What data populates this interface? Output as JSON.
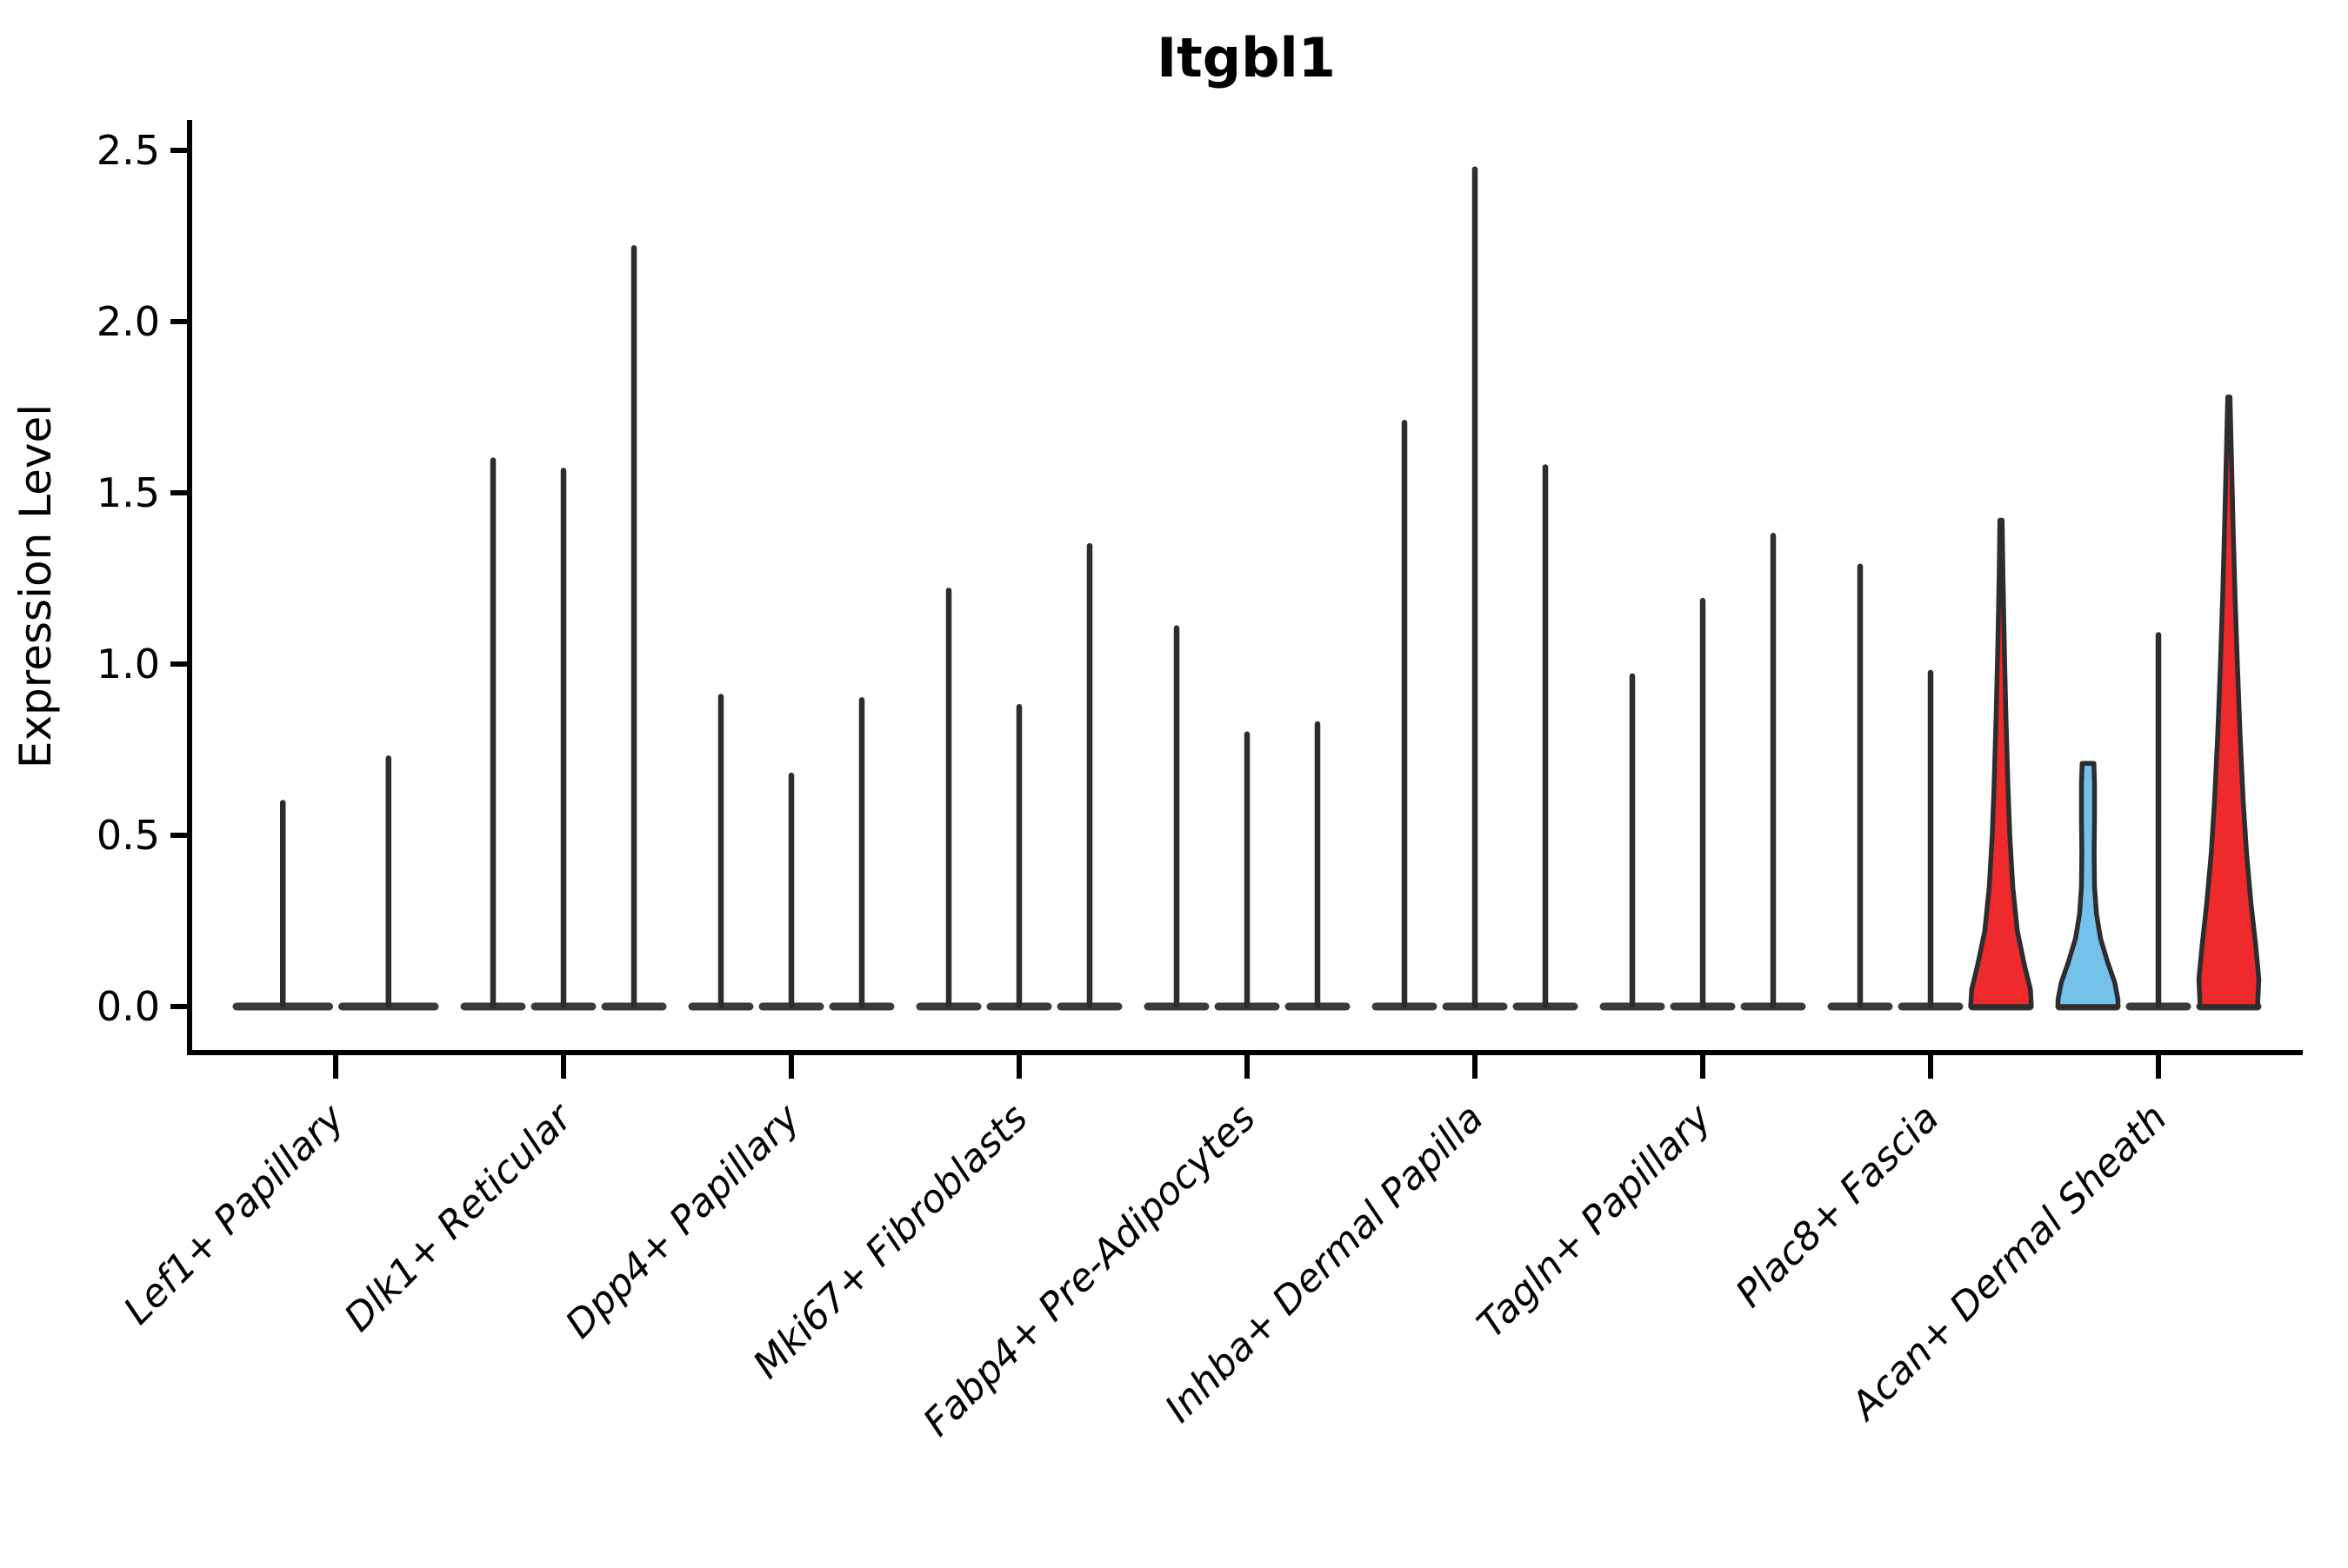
{
  "colors": {
    "background": "#ffffff",
    "axis": "#000000",
    "violin_outline": "#2d2d2d",
    "baseline_bar": "#3b3b3b",
    "red_fill": "#ee2a2c",
    "blue_fill": "#74c1ec",
    "text": "#000000"
  },
  "chart_data": {
    "type": "violin",
    "title": "Itgbl1",
    "ylabel": "Expression Level",
    "xlabel": "",
    "ylim": [
      -0.13,
      2.58
    ],
    "grid": false,
    "legend": "none",
    "yticks": [
      0.0,
      0.5,
      1.0,
      1.5,
      2.0,
      2.5
    ],
    "ytick_labels": [
      "0.0",
      "0.5",
      "1.0",
      "1.5",
      "2.0",
      "2.5"
    ],
    "categories": [
      "Lef1+ Papillary",
      "Dlk1+ Reticular",
      "Dpp4+ Papillary",
      "Mki67+ Fibroblasts",
      "Fabp4+ Pre-Adipocytes",
      "Inhba+ Dermal Papilla",
      "Tagln+ Papillary",
      "Plac8+ Fascia",
      "Acan+ Dermal Sheath"
    ],
    "groups": [
      {
        "category": "Lef1+ Papillary",
        "violins": [
          {
            "max": 0.6,
            "style": "line"
          },
          {
            "max": 0.73,
            "style": "line"
          }
        ]
      },
      {
        "category": "Dlk1+ Reticular",
        "violins": [
          {
            "max": 1.6,
            "style": "line"
          },
          {
            "max": 1.57,
            "style": "line"
          },
          {
            "max": 2.22,
            "style": "line"
          }
        ]
      },
      {
        "category": "Dpp4+ Papillary",
        "violins": [
          {
            "max": 0.91,
            "style": "line"
          },
          {
            "max": 0.68,
            "style": "line"
          },
          {
            "max": 0.9,
            "style": "line"
          }
        ]
      },
      {
        "category": "Mki67+ Fibroblasts",
        "violins": [
          {
            "max": 1.22,
            "style": "line"
          },
          {
            "max": 0.88,
            "style": "line"
          },
          {
            "max": 1.35,
            "style": "line"
          }
        ]
      },
      {
        "category": "Fabp4+ Pre-Adipocytes",
        "violins": [
          {
            "max": 1.11,
            "style": "line"
          },
          {
            "max": 0.8,
            "style": "line"
          },
          {
            "max": 0.83,
            "style": "line"
          }
        ]
      },
      {
        "category": "Inhba+ Dermal Papilla",
        "violins": [
          {
            "max": 1.71,
            "style": "line"
          },
          {
            "max": 2.45,
            "style": "line"
          },
          {
            "max": 1.58,
            "style": "line"
          }
        ]
      },
      {
        "category": "Tagln+ Papillary",
        "violins": [
          {
            "max": 0.97,
            "style": "line"
          },
          {
            "max": 1.19,
            "style": "line"
          },
          {
            "max": 1.38,
            "style": "line"
          }
        ]
      },
      {
        "category": "Plac8+ Fascia",
        "violins": [
          {
            "max": 1.29,
            "style": "line"
          },
          {
            "max": 0.98,
            "style": "line"
          },
          {
            "max": 1.42,
            "style": "filled",
            "fill": "#ee2a2c",
            "profile": [
              [
                1.42,
                0.035
              ],
              [
                1.25,
                0.06
              ],
              [
                1.05,
                0.1
              ],
              [
                0.85,
                0.15
              ],
              [
                0.65,
                0.21
              ],
              [
                0.5,
                0.27
              ],
              [
                0.35,
                0.36
              ],
              [
                0.22,
                0.5
              ],
              [
                0.12,
                0.72
              ],
              [
                0.05,
                0.9
              ],
              [
                0.0,
                0.93
              ]
            ]
          }
        ]
      },
      {
        "category": "Acan+ Dermal Sheath",
        "violins": [
          {
            "max": 0.71,
            "style": "filled",
            "fill": "#74c1ec",
            "profile": [
              [
                0.71,
                0.18
              ],
              [
                0.65,
                0.2
              ],
              [
                0.55,
                0.2
              ],
              [
                0.45,
                0.19
              ],
              [
                0.35,
                0.2
              ],
              [
                0.27,
                0.26
              ],
              [
                0.2,
                0.38
              ],
              [
                0.13,
                0.6
              ],
              [
                0.07,
                0.82
              ],
              [
                0.02,
                0.92
              ],
              [
                0.0,
                0.92
              ]
            ]
          },
          {
            "max": 1.09,
            "style": "line"
          },
          {
            "max": 1.78,
            "style": "filled",
            "fill": "#ee2a2c",
            "profile": [
              [
                1.78,
                0.035
              ],
              [
                1.6,
                0.08
              ],
              [
                1.4,
                0.13
              ],
              [
                1.2,
                0.19
              ],
              [
                1.0,
                0.26
              ],
              [
                0.8,
                0.34
              ],
              [
                0.6,
                0.44
              ],
              [
                0.45,
                0.54
              ],
              [
                0.3,
                0.68
              ],
              [
                0.18,
                0.82
              ],
              [
                0.08,
                0.92
              ],
              [
                0.0,
                0.88
              ]
            ]
          }
        ]
      }
    ]
  }
}
